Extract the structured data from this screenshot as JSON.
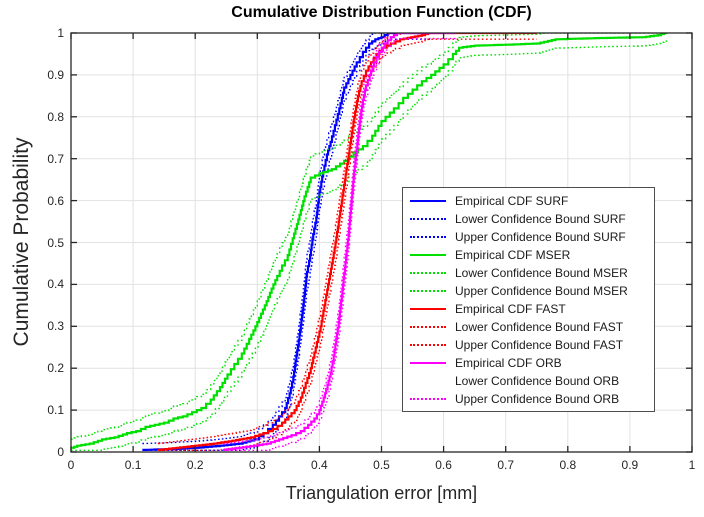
{
  "figure": {
    "title": "Cumulative Distribution Function (CDF)",
    "xlabel": "Triangulation error [mm]",
    "ylabel": "Cumulative Probability"
  },
  "colors": {
    "background": "#ffffff",
    "axis": "#262626",
    "grid": "#e2e2e2",
    "tick_text": "#262626",
    "legend_border": "#4d4d4d",
    "surf": "#0000ff",
    "mser": "#00e000",
    "fast": "#ff0000",
    "orb": "#ff00ff"
  },
  "chart_data": {
    "type": "line",
    "subtype": "empirical-cdf-staircase",
    "title": "Cumulative Distribution Function (CDF)",
    "xlabel": "Triangulation error [mm]",
    "ylabel": "Cumulative Probability",
    "xlim": [
      0,
      1
    ],
    "ylim": [
      0,
      1
    ],
    "grid": true,
    "legend_position": "inside-right-middle",
    "x_ticks": [
      "0",
      "0.1",
      "0.2",
      "0.3",
      "0.4",
      "0.5",
      "0.6",
      "0.7",
      "0.8",
      "0.9",
      "1"
    ],
    "y_ticks": [
      "0",
      "0.1",
      "0.2",
      "0.3",
      "0.4",
      "0.5",
      "0.6",
      "0.7",
      "0.8",
      "0.9",
      "1"
    ],
    "bounds_rendering": "each series has dotted lower/upper confidence bounds drawn as empirical CDF offset vertically by ±delta (narrowing near 0 and 1), same color as series; ORB lower bound swatch absent in legend",
    "series": [
      {
        "id": "surf",
        "name": "Empirical CDF SURF",
        "color": "#0000ff",
        "style": "solid",
        "bound_delta": 0.042,
        "x": [
          0.115,
          0.16,
          0.2,
          0.24,
          0.27,
          0.295,
          0.31,
          0.325,
          0.335,
          0.345,
          0.352,
          0.358,
          0.363,
          0.368,
          0.374,
          0.38,
          0.385,
          0.39,
          0.395,
          0.4,
          0.406,
          0.412,
          0.418,
          0.425,
          0.432,
          0.44,
          0.45,
          0.46,
          0.47,
          0.48,
          0.49,
          0.5,
          0.51,
          0.58
        ],
        "y": [
          0.005,
          0.007,
          0.01,
          0.015,
          0.02,
          0.03,
          0.045,
          0.065,
          0.085,
          0.105,
          0.14,
          0.18,
          0.23,
          0.28,
          0.35,
          0.43,
          0.47,
          0.52,
          0.56,
          0.62,
          0.67,
          0.71,
          0.74,
          0.78,
          0.82,
          0.87,
          0.9,
          0.93,
          0.955,
          0.975,
          0.985,
          0.99,
          1.0,
          1.0
        ]
      },
      {
        "id": "mser",
        "name": "Empirical CDF MSER",
        "color": "#00e000",
        "style": "solid",
        "bound_delta": 0.055,
        "x": [
          0.0,
          0.01,
          0.03,
          0.05,
          0.07,
          0.09,
          0.105,
          0.12,
          0.135,
          0.15,
          0.165,
          0.18,
          0.195,
          0.21,
          0.225,
          0.24,
          0.252,
          0.263,
          0.275,
          0.287,
          0.297,
          0.306,
          0.315,
          0.323,
          0.332,
          0.34,
          0.349,
          0.357,
          0.366,
          0.376,
          0.386,
          0.4,
          0.42,
          0.44,
          0.455,
          0.47,
          0.485,
          0.5,
          0.52,
          0.535,
          0.55,
          0.565,
          0.58,
          0.6,
          0.615,
          0.625,
          0.65,
          0.7,
          0.75,
          0.78,
          0.85,
          0.92,
          0.945,
          0.955,
          0.96
        ],
        "y": [
          0.01,
          0.015,
          0.02,
          0.03,
          0.035,
          0.045,
          0.05,
          0.06,
          0.065,
          0.07,
          0.08,
          0.085,
          0.095,
          0.105,
          0.125,
          0.155,
          0.185,
          0.21,
          0.235,
          0.27,
          0.3,
          0.33,
          0.36,
          0.39,
          0.42,
          0.445,
          0.47,
          0.51,
          0.555,
          0.61,
          0.655,
          0.665,
          0.675,
          0.695,
          0.715,
          0.73,
          0.755,
          0.79,
          0.82,
          0.845,
          0.865,
          0.885,
          0.9,
          0.925,
          0.95,
          0.965,
          0.97,
          0.972,
          0.975,
          0.985,
          0.988,
          0.99,
          0.995,
          1.0,
          1.0
        ]
      },
      {
        "id": "fast",
        "name": "Empirical CDF FAST",
        "color": "#ff0000",
        "style": "solid",
        "bound_delta": 0.042,
        "x": [
          0.14,
          0.17,
          0.2,
          0.23,
          0.26,
          0.29,
          0.31,
          0.325,
          0.34,
          0.35,
          0.36,
          0.37,
          0.378,
          0.386,
          0.394,
          0.402,
          0.408,
          0.414,
          0.42,
          0.426,
          0.431,
          0.436,
          0.441,
          0.446,
          0.451,
          0.456,
          0.462,
          0.468,
          0.475,
          0.483,
          0.492,
          0.502,
          0.515,
          0.53,
          0.548,
          0.565,
          0.575,
          0.75
        ],
        "y": [
          0.005,
          0.01,
          0.015,
          0.02,
          0.027,
          0.035,
          0.045,
          0.055,
          0.07,
          0.085,
          0.1,
          0.13,
          0.165,
          0.2,
          0.25,
          0.3,
          0.35,
          0.4,
          0.45,
          0.5,
          0.55,
          0.6,
          0.65,
          0.7,
          0.75,
          0.8,
          0.85,
          0.885,
          0.91,
          0.93,
          0.95,
          0.965,
          0.975,
          0.985,
          0.99,
          0.995,
          1.0,
          1.0
        ]
      },
      {
        "id": "orb",
        "name": "Empirical CDF ORB",
        "color": "#ff00ff",
        "style": "solid",
        "bound_delta": 0.038,
        "x": [
          0.245,
          0.27,
          0.295,
          0.315,
          0.335,
          0.355,
          0.37,
          0.382,
          0.392,
          0.4,
          0.407,
          0.413,
          0.418,
          0.423,
          0.427,
          0.431,
          0.435,
          0.438,
          0.441,
          0.444,
          0.447,
          0.45,
          0.453,
          0.456,
          0.459,
          0.462,
          0.466,
          0.47,
          0.475,
          0.481,
          0.488,
          0.496,
          0.505,
          0.515,
          0.525,
          0.62
        ],
        "y": [
          0.005,
          0.01,
          0.015,
          0.02,
          0.03,
          0.04,
          0.05,
          0.065,
          0.08,
          0.1,
          0.13,
          0.16,
          0.19,
          0.23,
          0.27,
          0.31,
          0.36,
          0.4,
          0.44,
          0.48,
          0.52,
          0.57,
          0.62,
          0.67,
          0.71,
          0.75,
          0.8,
          0.84,
          0.875,
          0.9,
          0.93,
          0.955,
          0.975,
          0.99,
          1.0,
          1.0
        ]
      }
    ]
  },
  "legend": {
    "entries": [
      {
        "label": "Empirical CDF SURF",
        "color": "#0000ff",
        "style": "solid"
      },
      {
        "label": "Lower Confidence Bound SURF",
        "color": "#0000ff",
        "style": "dotted"
      },
      {
        "label": "Upper Confidence Bound SURF",
        "color": "#0000ff",
        "style": "dotted"
      },
      {
        "label": "Empirical CDF MSER",
        "color": "#00e000",
        "style": "solid"
      },
      {
        "label": "Lower Confidence Bound MSER",
        "color": "#00e000",
        "style": "dotted"
      },
      {
        "label": "Upper Confidence Bound MSER",
        "color": "#00e000",
        "style": "dotted"
      },
      {
        "label": "Empirical CDF FAST",
        "color": "#ff0000",
        "style": "solid"
      },
      {
        "label": "Lower Confidence Bound FAST",
        "color": "#ff0000",
        "style": "dotted"
      },
      {
        "label": "Upper Confidence Bound FAST",
        "color": "#ff0000",
        "style": "dotted"
      },
      {
        "label": "Empirical CDF ORB",
        "color": "#ff00ff",
        "style": "solid"
      },
      {
        "label": "Lower Confidence Bound ORB",
        "color": "#ffffff",
        "style": "dotted"
      },
      {
        "label": "Upper Confidence Bound ORB",
        "color": "#ff00ff",
        "style": "dotted"
      }
    ]
  }
}
